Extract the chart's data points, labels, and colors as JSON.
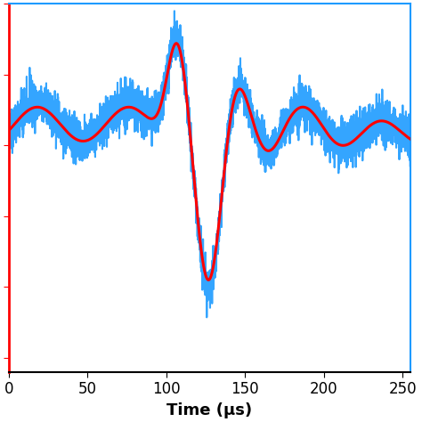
{
  "title": "",
  "xlabel": "Time (μs)",
  "ylabel": "",
  "xlim": [
    0,
    255
  ],
  "ylim": [
    -1.6,
    1.0
  ],
  "xticks": [
    0,
    50,
    100,
    150,
    200,
    250
  ],
  "background_color": "#ffffff",
  "blue_color": "#1E9BFF",
  "red_color": "#FF0000",
  "blue_linewidth": 1.5,
  "red_linewidth": 2.2,
  "xlabel_fontsize": 13,
  "tick_fontsize": 12,
  "seed": 42
}
